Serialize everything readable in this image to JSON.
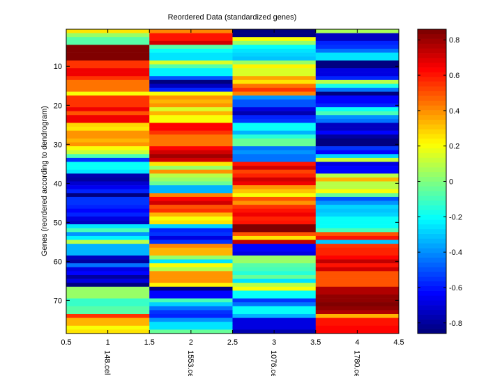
{
  "chart_data": {
    "type": "heatmap",
    "title": "Reordered Data (standardized genes)",
    "xlabel": "",
    "ylabel": "Genes (reordered according to dendrogram)",
    "xlim": [
      0.5,
      4.5
    ],
    "ylim": [
      0.5,
      78.5
    ],
    "x_ticks": [
      0.5,
      1,
      1.5,
      2,
      2.5,
      3,
      3.5,
      4,
      4.5
    ],
    "x_tick_labels": [
      "0.5",
      "1",
      "1.5",
      "2",
      "2.5",
      "3",
      "3.5",
      "4",
      "4.5"
    ],
    "column_labels": [
      "148.cel",
      "1553.cel",
      "1076.cel",
      "1780.cel"
    ],
    "y_ticks": [
      10,
      20,
      30,
      40,
      50,
      60,
      70
    ],
    "y_tick_labels": [
      "10",
      "20",
      "30",
      "40",
      "50",
      "60",
      "70"
    ],
    "colormap": "jet",
    "clim": [
      -0.86,
      0.86
    ],
    "colorbar": {
      "ticks": [
        0.8,
        0.6,
        0.4,
        0.2,
        0,
        -0.2,
        -0.4,
        -0.6,
        -0.8
      ],
      "tick_labels": [
        "0.8",
        "0.6",
        "0.4",
        "0.2",
        "0",
        "-0.2",
        "-0.4",
        "-0.6",
        "-0.8"
      ],
      "placement": "right"
    },
    "grid": false,
    "values": [
      [
        0.25,
        0.42,
        -0.85,
        0.08
      ],
      [
        0.05,
        0.62,
        -0.85,
        -0.75
      ],
      [
        -0.08,
        0.62,
        0.2,
        -0.75
      ],
      [
        -0.08,
        0.72,
        0.05,
        -0.6
      ],
      [
        0.86,
        -0.08,
        -0.2,
        -0.55
      ],
      [
        0.86,
        -0.2,
        -0.25,
        -0.45
      ],
      [
        0.86,
        -0.25,
        -0.3,
        -0.25
      ],
      [
        0.86,
        -0.25,
        -0.32,
        -0.25
      ],
      [
        0.55,
        0.15,
        0.05,
        -0.85
      ],
      [
        0.55,
        -0.08,
        0.22,
        -0.85
      ],
      [
        0.68,
        -0.22,
        0.15,
        -0.7
      ],
      [
        0.68,
        -0.22,
        0.15,
        -0.7
      ],
      [
        0.55,
        -0.5,
        0.38,
        -0.6
      ],
      [
        0.45,
        -0.85,
        0.25,
        0.1
      ],
      [
        0.45,
        -0.75,
        0.45,
        -0.18
      ],
      [
        0.45,
        -0.6,
        0.55,
        -0.45
      ],
      [
        0.2,
        0.2,
        0.42,
        -0.85
      ],
      [
        0.55,
        0.4,
        -0.4,
        -0.65
      ],
      [
        0.55,
        0.35,
        -0.5,
        -0.65
      ],
      [
        0.55,
        0.4,
        -0.5,
        -0.6
      ],
      [
        0.68,
        0.15,
        -0.7,
        -0.2
      ],
      [
        0.5,
        0.35,
        -0.78,
        -0.1
      ],
      [
        0.68,
        0.2,
        -0.6,
        -0.4
      ],
      [
        0.68,
        0.2,
        -0.55,
        -0.45
      ],
      [
        0.3,
        0.65,
        -0.2,
        -0.75
      ],
      [
        0.25,
        0.65,
        -0.2,
        -0.75
      ],
      [
        0.4,
        0.55,
        -0.35,
        -0.65
      ],
      [
        0.4,
        0.45,
        -0.15,
        -0.8
      ],
      [
        0.35,
        0.45,
        -0.05,
        -0.85
      ],
      [
        0.4,
        0.45,
        -0.05,
        -0.85
      ],
      [
        0.2,
        0.65,
        -0.45,
        -0.55
      ],
      [
        0.12,
        0.72,
        -0.4,
        -0.65
      ],
      [
        -0.1,
        0.8,
        -0.45,
        -0.3
      ],
      [
        -0.55,
        0.72,
        -0.45,
        0.12
      ],
      [
        -0.2,
        0.25,
        0.62,
        -0.7
      ],
      [
        -0.2,
        0.05,
        0.72,
        -0.65
      ],
      [
        -0.25,
        0.4,
        0.52,
        -0.65
      ],
      [
        -0.78,
        0.1,
        0.6,
        0.1
      ],
      [
        -0.8,
        0.05,
        0.72,
        0.35
      ],
      [
        -0.72,
        -0.05,
        0.68,
        0.1
      ],
      [
        -0.68,
        -0.35,
        0.4,
        0.1
      ],
      [
        -0.6,
        -0.35,
        0.32,
        0.2
      ],
      [
        -0.85,
        0.42,
        0.2,
        -0.05
      ],
      [
        -0.55,
        0.65,
        0.5,
        -0.5
      ],
      [
        -0.55,
        0.72,
        0.4,
        -0.4
      ],
      [
        -0.6,
        0.5,
        0.55,
        -0.3
      ],
      [
        -0.65,
        0.55,
        0.62,
        -0.32
      ],
      [
        -0.6,
        0.35,
        0.68,
        -0.3
      ],
      [
        -0.7,
        0.2,
        0.6,
        -0.2
      ],
      [
        -0.75,
        0.25,
        0.62,
        -0.2
      ],
      [
        -0.25,
        -0.3,
        0.86,
        -0.2
      ],
      [
        -0.1,
        -0.6,
        0.86,
        -0.1
      ],
      [
        -0.4,
        -0.55,
        0.5,
        0.5
      ],
      [
        -0.22,
        -0.7,
        0.25,
        0.62
      ],
      [
        0.1,
        -0.55,
        0.75,
        -0.32
      ],
      [
        -0.35,
        0.42,
        -0.65,
        0.55
      ],
      [
        -0.35,
        0.35,
        -0.65,
        0.6
      ],
      [
        -0.35,
        0.35,
        -0.7,
        0.6
      ],
      [
        -0.75,
        0.05,
        0.05,
        0.65
      ],
      [
        -0.8,
        -0.25,
        0.05,
        0.75
      ],
      [
        -0.45,
        0.2,
        -0.08,
        0.62
      ],
      [
        -0.7,
        0.1,
        -0.1,
        0.72
      ],
      [
        -0.65,
        0.4,
        -0.15,
        0.5
      ],
      [
        -0.8,
        0.4,
        -0.05,
        0.5
      ],
      [
        -0.7,
        0.4,
        -0.25,
        0.5
      ],
      [
        -0.85,
        0.22,
        0.1,
        0.5
      ],
      [
        0.05,
        -0.85,
        0.2,
        0.78
      ],
      [
        0.05,
        -0.65,
        -0.2,
        0.78
      ],
      [
        0.05,
        -0.65,
        -0.2,
        0.82
      ],
      [
        -0.12,
        -0.1,
        -0.55,
        0.82
      ],
      [
        -0.12,
        -0.3,
        -0.45,
        0.86
      ],
      [
        -0.08,
        -0.45,
        -0.2,
        0.82
      ],
      [
        -0.08,
        -0.55,
        -0.2,
        0.78
      ],
      [
        0.55,
        -0.6,
        -0.35,
        0.35
      ],
      [
        0.35,
        -0.4,
        -0.7,
        0.62
      ],
      [
        0.35,
        -0.25,
        -0.7,
        0.62
      ],
      [
        0.2,
        -0.25,
        -0.7,
        0.65
      ],
      [
        0.25,
        -0.05,
        -0.78,
        0.65
      ]
    ]
  }
}
